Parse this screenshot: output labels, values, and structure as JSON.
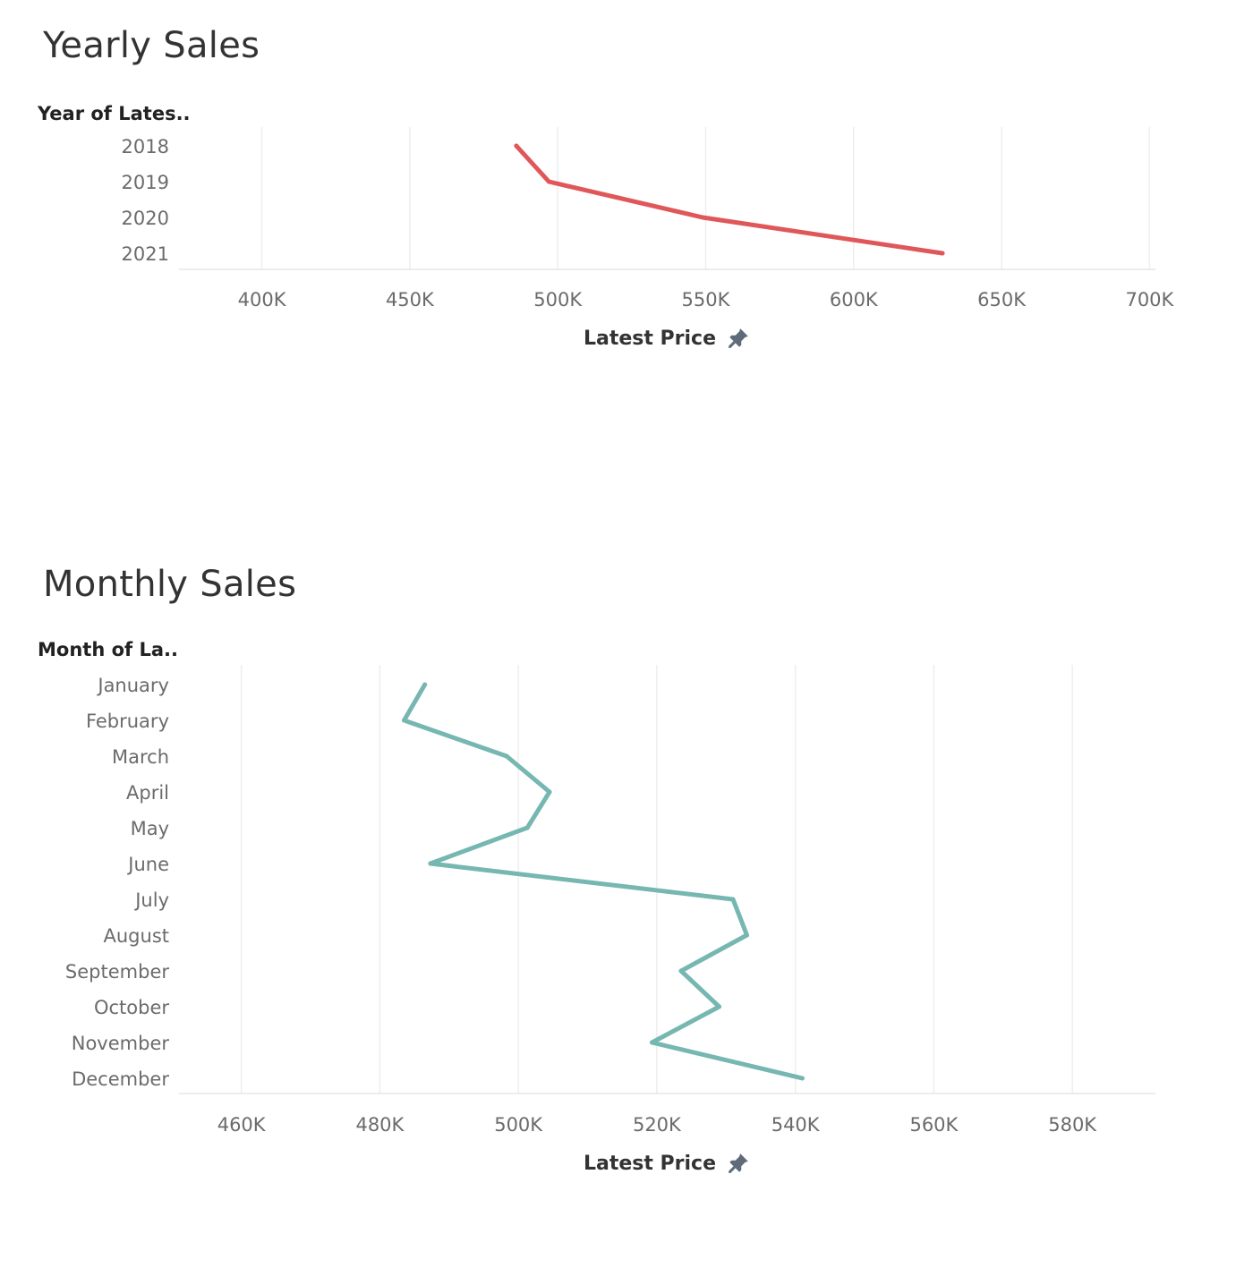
{
  "colors": {
    "yearly_line": "#e05759",
    "monthly_line": "#76b7b2",
    "grid": "#eeeeee",
    "axis": "#e6e6e6"
  },
  "chart_data": [
    {
      "type": "line",
      "title": "Yearly Sales",
      "ylabel": "Year of Lates..",
      "xlabel": "Latest Price",
      "orientation": "horizontal",
      "categories": [
        "2018",
        "2019",
        "2020",
        "2021"
      ],
      "values": [
        486000,
        497000,
        549000,
        630000
      ],
      "xlim": [
        372000,
        702000
      ],
      "xticks": [
        400000,
        450000,
        500000,
        550000,
        600000,
        650000,
        700000
      ],
      "xtick_labels": [
        "400K",
        "450K",
        "500K",
        "550K",
        "600K",
        "650K",
        "700K"
      ],
      "grid": true,
      "legend": "none"
    },
    {
      "type": "line",
      "title": "Monthly Sales",
      "ylabel": "Month of La..",
      "xlabel": "Latest Price",
      "orientation": "horizontal",
      "categories": [
        "January",
        "February",
        "March",
        "April",
        "May",
        "June",
        "July",
        "August",
        "September",
        "October",
        "November",
        "December"
      ],
      "values": [
        486500,
        483500,
        498300,
        504500,
        501300,
        487300,
        531000,
        533000,
        523500,
        529000,
        519300,
        541000
      ],
      "xlim": [
        451000,
        592000
      ],
      "xticks": [
        460000,
        480000,
        500000,
        520000,
        540000,
        560000,
        580000
      ],
      "xtick_labels": [
        "460K",
        "480K",
        "500K",
        "520K",
        "540K",
        "560K",
        "580K"
      ],
      "grid": true,
      "legend": "none"
    }
  ]
}
